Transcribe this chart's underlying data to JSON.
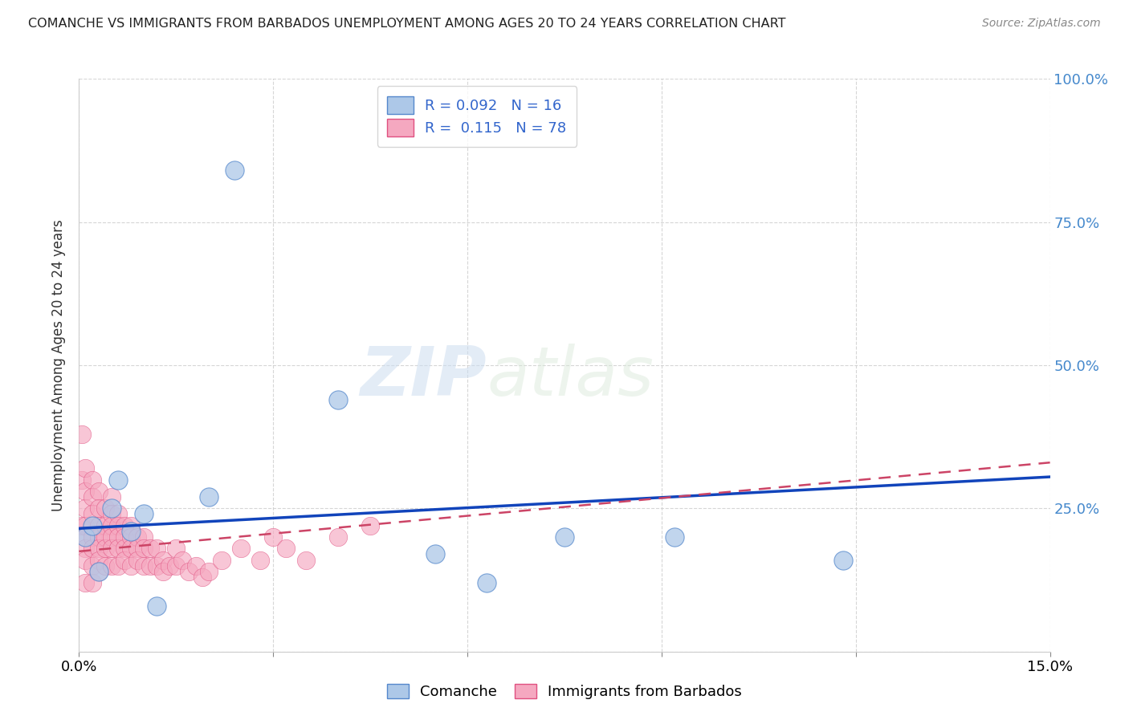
{
  "title": "COMANCHE VS IMMIGRANTS FROM BARBADOS UNEMPLOYMENT AMONG AGES 20 TO 24 YEARS CORRELATION CHART",
  "source": "Source: ZipAtlas.com",
  "ylabel": "Unemployment Among Ages 20 to 24 years",
  "xlim": [
    0.0,
    0.15
  ],
  "ylim": [
    0.0,
    1.0
  ],
  "xticks": [
    0.0,
    0.03,
    0.06,
    0.09,
    0.12,
    0.15
  ],
  "xticklabels": [
    "0.0%",
    "",
    "",
    "",
    "",
    "15.0%"
  ],
  "yticks_right": [
    0.0,
    0.25,
    0.5,
    0.75,
    1.0
  ],
  "yticklabels_right": [
    "",
    "25.0%",
    "50.0%",
    "75.0%",
    "100.0%"
  ],
  "comanche_R": "0.092",
  "comanche_N": "16",
  "barbados_R": "0.115",
  "barbados_N": "78",
  "comanche_color": "#adc8e8",
  "barbados_color": "#f5a8c0",
  "comanche_edge": "#5588cc",
  "barbados_edge": "#e05080",
  "trend_blue": "#1144bb",
  "trend_pink": "#cc4466",
  "watermark_zip": "ZIP",
  "watermark_atlas": "atlas",
  "comanche_x": [
    0.001,
    0.002,
    0.003,
    0.005,
    0.006,
    0.008,
    0.01,
    0.012,
    0.02,
    0.024,
    0.04,
    0.055,
    0.063,
    0.075,
    0.092,
    0.118
  ],
  "comanche_y": [
    0.2,
    0.22,
    0.14,
    0.25,
    0.3,
    0.21,
    0.24,
    0.08,
    0.27,
    0.84,
    0.44,
    0.17,
    0.12,
    0.2,
    0.2,
    0.16
  ],
  "barbados_x": [
    0.0005,
    0.0005,
    0.0005,
    0.001,
    0.001,
    0.001,
    0.001,
    0.001,
    0.001,
    0.001,
    0.001,
    0.002,
    0.002,
    0.002,
    0.002,
    0.002,
    0.002,
    0.002,
    0.002,
    0.003,
    0.003,
    0.003,
    0.003,
    0.003,
    0.003,
    0.003,
    0.004,
    0.004,
    0.004,
    0.004,
    0.004,
    0.005,
    0.005,
    0.005,
    0.005,
    0.005,
    0.005,
    0.006,
    0.006,
    0.006,
    0.006,
    0.006,
    0.007,
    0.007,
    0.007,
    0.007,
    0.008,
    0.008,
    0.008,
    0.008,
    0.009,
    0.009,
    0.009,
    0.01,
    0.01,
    0.01,
    0.011,
    0.011,
    0.012,
    0.012,
    0.013,
    0.013,
    0.014,
    0.015,
    0.015,
    0.016,
    0.017,
    0.018,
    0.019,
    0.02,
    0.022,
    0.025,
    0.028,
    0.03,
    0.032,
    0.035,
    0.04,
    0.045
  ],
  "barbados_y": [
    0.38,
    0.3,
    0.22,
    0.32,
    0.28,
    0.25,
    0.22,
    0.2,
    0.18,
    0.16,
    0.12,
    0.3,
    0.27,
    0.24,
    0.22,
    0.2,
    0.18,
    0.15,
    0.12,
    0.28,
    0.25,
    0.22,
    0.2,
    0.18,
    0.16,
    0.14,
    0.25,
    0.22,
    0.2,
    0.18,
    0.15,
    0.27,
    0.24,
    0.22,
    0.2,
    0.18,
    0.15,
    0.24,
    0.22,
    0.2,
    0.18,
    0.15,
    0.22,
    0.2,
    0.18,
    0.16,
    0.22,
    0.2,
    0.18,
    0.15,
    0.2,
    0.18,
    0.16,
    0.2,
    0.18,
    0.15,
    0.18,
    0.15,
    0.18,
    0.15,
    0.16,
    0.14,
    0.15,
    0.18,
    0.15,
    0.16,
    0.14,
    0.15,
    0.13,
    0.14,
    0.16,
    0.18,
    0.16,
    0.2,
    0.18,
    0.16,
    0.2,
    0.22
  ],
  "trend_blue_x0": 0.0,
  "trend_blue_y0": 0.215,
  "trend_blue_x1": 0.15,
  "trend_blue_y1": 0.305,
  "trend_pink_x0": 0.0,
  "trend_pink_y0": 0.175,
  "trend_pink_x1": 0.15,
  "trend_pink_y1": 0.33
}
